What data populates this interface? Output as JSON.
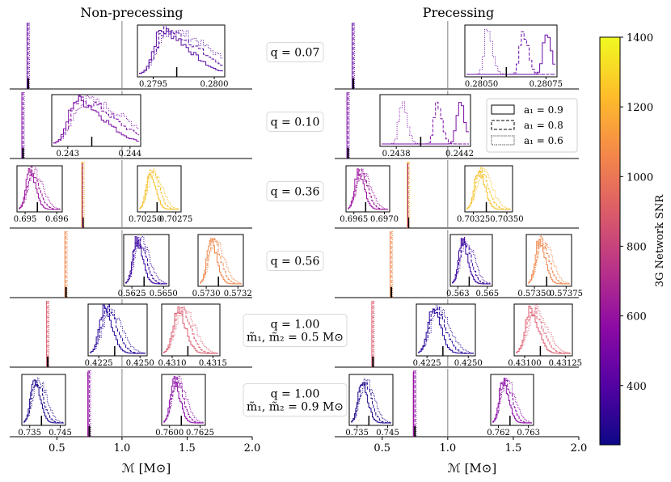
{
  "chart_data": {
    "type": "line",
    "title_left": "Non-precessing",
    "title_right": "Precessing",
    "xlabel": "ℳ [M⊙]",
    "xlim": [
      0.15,
      2.0
    ],
    "xticks": [
      0.5,
      1.0,
      1.5,
      2.0
    ],
    "xtick_labels": [
      "0.5",
      "1.0",
      "1.5",
      "2.0"
    ],
    "vline": 1.0,
    "rows": [
      {
        "label_lines": [
          "q = 0.07"
        ],
        "chirp_mass": 0.28,
        "np_color": "#6a0fa6",
        "p_color": "#6a0fa6",
        "np_insets": [
          {
            "ticks": [
              "0.2795",
              "0.2800"
            ],
            "color": "#5b0fa6"
          }
        ],
        "p_insets": [
          {
            "ticks": [
              "0.28050",
              "0.28075"
            ],
            "color": "#6a0fa6"
          }
        ]
      },
      {
        "label_lines": [
          "q = 0.10"
        ],
        "chirp_mass": 0.24,
        "np_color": "#7d10a8",
        "p_color": "#7d10a8",
        "np_insets": [
          {
            "ticks": [
              "0.243",
              "0.244"
            ],
            "color": "#7d10a8"
          }
        ],
        "p_insets": [
          {
            "ticks": [
              "0.2438",
              "0.2442"
            ],
            "color": "#7d10a8"
          }
        ]
      },
      {
        "label_lines": [
          "q = 0.36"
        ],
        "chirp_mass": 0.7,
        "np_color": "#f4b330",
        "p_color": "#f4b330",
        "np_insets": [
          {
            "ticks": [
              "0.695",
              "0.696"
            ],
            "color": "#9c179e"
          },
          {
            "ticks": [
              "0.70250",
              "0.70275"
            ],
            "color": "#f6c22f"
          }
        ],
        "p_insets": [
          {
            "ticks": [
              "0.6965",
              "0.6970"
            ],
            "color": "#9c179e"
          },
          {
            "ticks": [
              "0.70325",
              "0.70350"
            ],
            "color": "#f6c22f"
          }
        ]
      },
      {
        "label_lines": [
          "q = 0.56"
        ],
        "chirp_mass": 0.57,
        "np_color": "#f0884e",
        "p_color": "#f0884e",
        "np_insets": [
          {
            "ticks": [
              "0.5625",
              "0.5650"
            ],
            "color": "#3a05a0"
          },
          {
            "ticks": [
              "0.5730",
              "0.5732"
            ],
            "color": "#f0884e"
          }
        ],
        "p_insets": [
          {
            "ticks": [
              "0.563",
              "0.565"
            ],
            "color": "#3a05a0"
          },
          {
            "ticks": [
              "0.57350",
              "0.57375"
            ],
            "color": "#f0884e"
          }
        ]
      },
      {
        "label_lines": [
          "q = 1.00",
          "m̃₁, m̃₂ = 0.5 M⊙"
        ],
        "chirp_mass": 0.43,
        "np_color": "#dc5a6c",
        "p_color": "#dc5a6c",
        "np_insets": [
          {
            "ticks": [
              "0.4225",
              "0.4250"
            ],
            "color": "#24049a"
          },
          {
            "ticks": [
              "0.4310",
              "0.4315"
            ],
            "color": "#dc5a6c"
          }
        ],
        "p_insets": [
          {
            "ticks": [
              "0.4225",
              "0.4250"
            ],
            "color": "#24049a"
          },
          {
            "ticks": [
              "0.43100",
              "0.43125"
            ],
            "color": "#dc5a6c"
          }
        ]
      },
      {
        "label_lines": [
          "q = 1.00",
          "m̃₁, m̃₂ = 0.9 M⊙"
        ],
        "chirp_mass": 0.75,
        "np_color": "#8c0fa6",
        "p_color": "#8c0fa6",
        "np_insets": [
          {
            "ticks": [
              "0.735",
              "0.745"
            ],
            "color": "#1f0c8c"
          },
          {
            "ticks": [
              "0.7600",
              "0.7625"
            ],
            "color": "#8c0fa6"
          }
        ],
        "p_insets": [
          {
            "ticks": [
              "0.735",
              "0.745"
            ],
            "color": "#1f0c8c"
          },
          {
            "ticks": [
              "0.762",
              "0.763"
            ],
            "color": "#8c0fa6"
          }
        ]
      }
    ],
    "legend": {
      "placement": "right of q=0.10 precessing row",
      "entries": [
        {
          "label": "a₁ = 0.9",
          "style": "solid"
        },
        {
          "label": "a₁ = 0.8",
          "style": "dashed"
        },
        {
          "label": "a₁ = 0.6",
          "style": "dotted"
        }
      ]
    },
    "colorbar": {
      "label": "3G Network SNR",
      "range": [
        230,
        1400
      ],
      "ticks": [
        400,
        600,
        800,
        1000,
        1200,
        1400
      ],
      "colormap": "plasma",
      "colors": [
        "#0d0887",
        "#5302a3",
        "#8b0aa5",
        "#b83289",
        "#db5c68",
        "#f48849",
        "#febd2a",
        "#f0f921"
      ]
    }
  }
}
